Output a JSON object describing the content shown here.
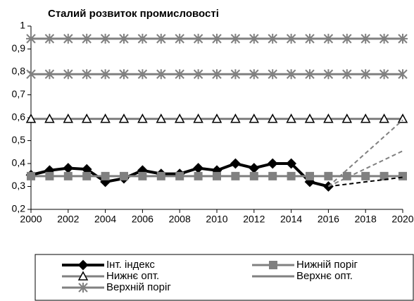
{
  "chart_data": {
    "type": "line",
    "title": "Сталий розвиток промисловості",
    "x": [
      2000,
      2001,
      2002,
      2003,
      2004,
      2005,
      2006,
      2007,
      2008,
      2009,
      2010,
      2011,
      2012,
      2013,
      2014,
      2015,
      2016,
      2017,
      2018,
      2019,
      2020
    ],
    "xlim": [
      2000,
      2020
    ],
    "xticks": [
      2000,
      2002,
      2004,
      2006,
      2008,
      2010,
      2012,
      2014,
      2016,
      2018,
      2020
    ],
    "ylim": [
      0.2,
      1
    ],
    "yticks": [
      {
        "value": 0.2,
        "label": "0,2"
      },
      {
        "value": 0.3,
        "label": "0,3"
      },
      {
        "value": 0.4,
        "label": "0,4"
      },
      {
        "value": 0.5,
        "label": "0,5"
      },
      {
        "value": 0.6,
        "label": "0,6"
      },
      {
        "value": 0.7,
        "label": "0,7"
      },
      {
        "value": 0.8,
        "label": "0,8"
      },
      {
        "value": 0.9,
        "label": "0,9"
      },
      1
    ],
    "grid": false,
    "legend": "bottom",
    "series": [
      {
        "name": "Інт. індекс",
        "color": "#000000",
        "marker": "diamond",
        "values": [
          0.35,
          0.37,
          0.38,
          0.375,
          0.32,
          0.335,
          0.37,
          0.355,
          0.355,
          0.38,
          0.37,
          0.4,
          0.38,
          0.4,
          0.4,
          0.32,
          0.3,
          null,
          null,
          null,
          null
        ]
      },
      {
        "name": "Нижній поріг",
        "color": "#808080",
        "marker": "square",
        "values": [
          0.345,
          0.345,
          0.345,
          0.345,
          0.345,
          0.345,
          0.345,
          0.345,
          0.345,
          0.345,
          0.345,
          0.345,
          0.345,
          0.345,
          0.345,
          0.345,
          0.345,
          0.345,
          0.345,
          0.345,
          0.345
        ]
      },
      {
        "name": "Нижнє опт.",
        "color": "#808080",
        "marker": "triangle",
        "values": [
          0.595,
          0.595,
          0.595,
          0.595,
          0.595,
          0.595,
          0.595,
          0.595,
          0.595,
          0.595,
          0.595,
          0.595,
          0.595,
          0.595,
          0.595,
          0.595,
          0.595,
          0.595,
          0.595,
          0.595,
          0.595
        ]
      },
      {
        "name": "Верхнє опт.",
        "color": "#808080",
        "marker": "x",
        "values": [
          0.79,
          0.79,
          0.79,
          0.79,
          0.79,
          0.79,
          0.79,
          0.79,
          0.79,
          0.79,
          0.79,
          0.79,
          0.79,
          0.79,
          0.79,
          0.79,
          0.79,
          0.79,
          0.79,
          0.79,
          0.79
        ]
      },
      {
        "name": "Верхній поріг",
        "color": "#808080",
        "marker": "asterisk",
        "values": [
          0.945,
          0.945,
          0.945,
          0.945,
          0.945,
          0.945,
          0.945,
          0.945,
          0.945,
          0.945,
          0.945,
          0.945,
          0.945,
          0.945,
          0.945,
          0.945,
          0.945,
          0.945,
          0.945,
          0.945,
          0.945
        ]
      }
    ],
    "trend_lines": [
      {
        "x": [
          2016,
          2020
        ],
        "values": [
          0.3,
          0.34
        ],
        "color": "#000000"
      },
      {
        "x": [
          2016,
          2020
        ],
        "values": [
          0.3,
          0.455
        ],
        "color": "#808080"
      },
      {
        "x": [
          2016,
          2020
        ],
        "values": [
          0.3,
          0.59
        ],
        "color": "#808080"
      }
    ]
  }
}
